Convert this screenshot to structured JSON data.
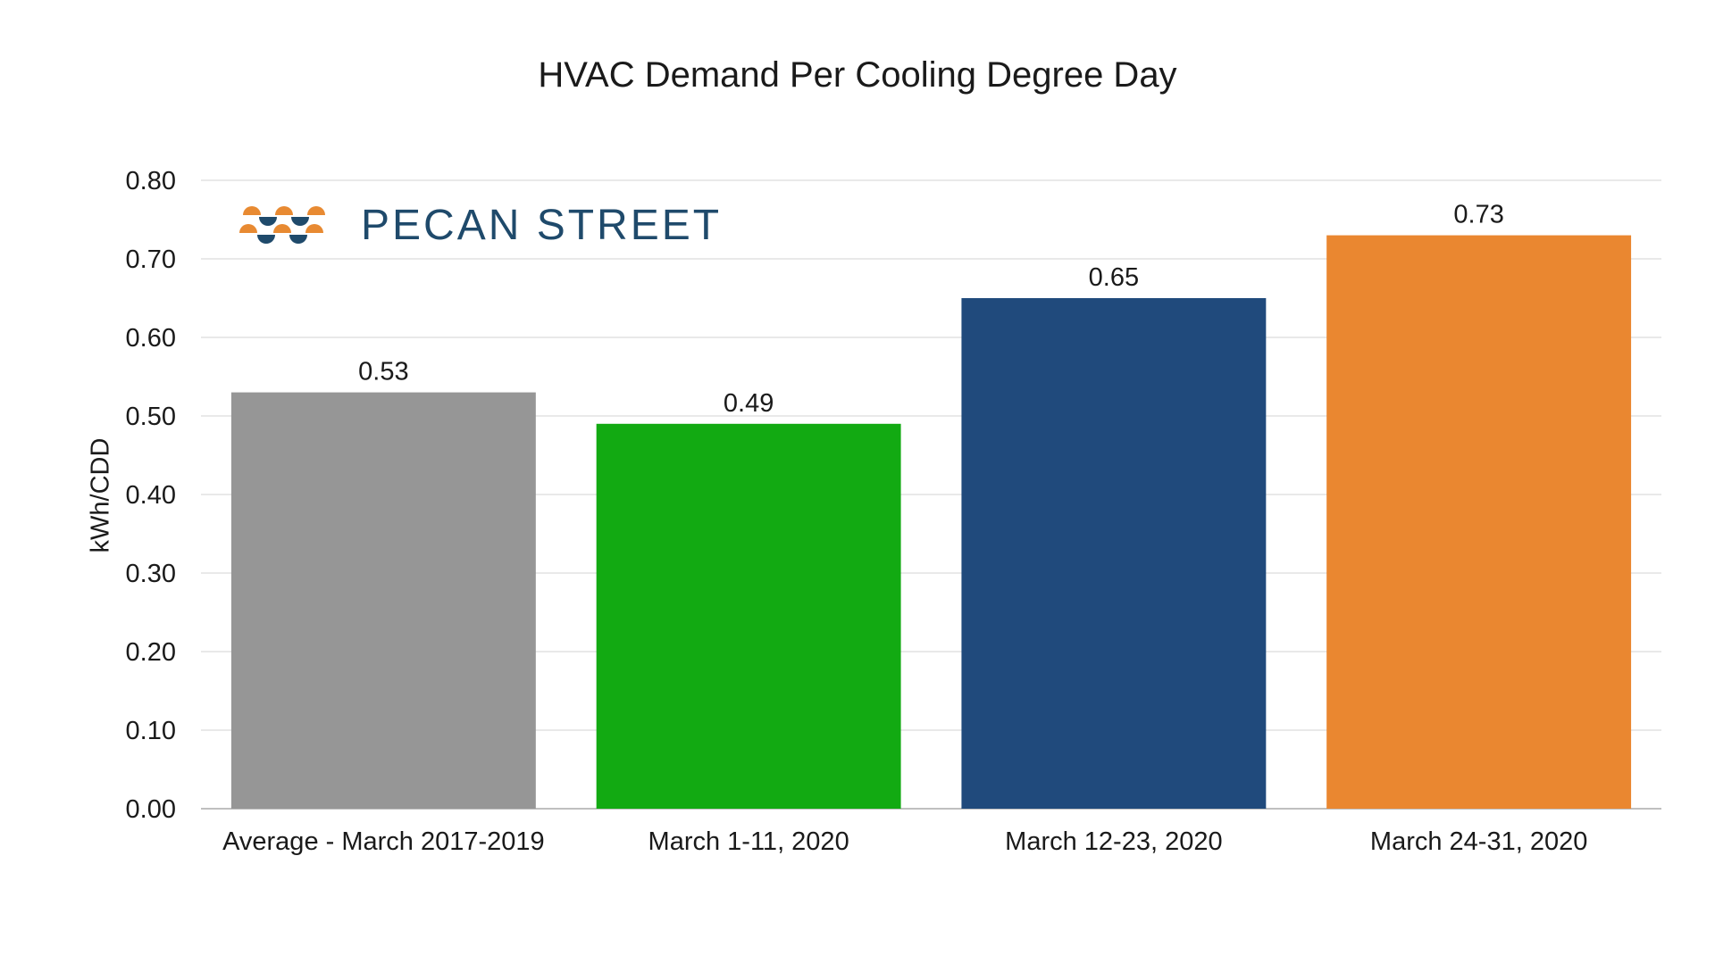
{
  "logo_text": "PECAN STREET",
  "chart_data": {
    "type": "bar",
    "title": "HVAC Demand Per Cooling Degree Day",
    "xlabel": "",
    "ylabel": "kWh/CDD",
    "categories": [
      "Average - March 2017-2019",
      "March 1-11, 2020",
      "March 12-23, 2020",
      "March 24-31, 2020"
    ],
    "values": [
      0.53,
      0.49,
      0.65,
      0.73
    ],
    "value_labels": [
      "0.53",
      "0.49",
      "0.65",
      "0.73"
    ],
    "colors": [
      "#969696",
      "#12aa12",
      "#204a7c",
      "#ea8730"
    ],
    "ylim": [
      0,
      0.8
    ],
    "yticks": [
      "0.00",
      "0.10",
      "0.20",
      "0.30",
      "0.40",
      "0.50",
      "0.60",
      "0.70",
      "0.80"
    ],
    "grid": true,
    "legend": "none"
  },
  "icons": {
    "logo": "pecan-street-logo-icon"
  },
  "colors": {
    "logo_orange": "#e88a32",
    "logo_navy": "#1f4a6b"
  }
}
